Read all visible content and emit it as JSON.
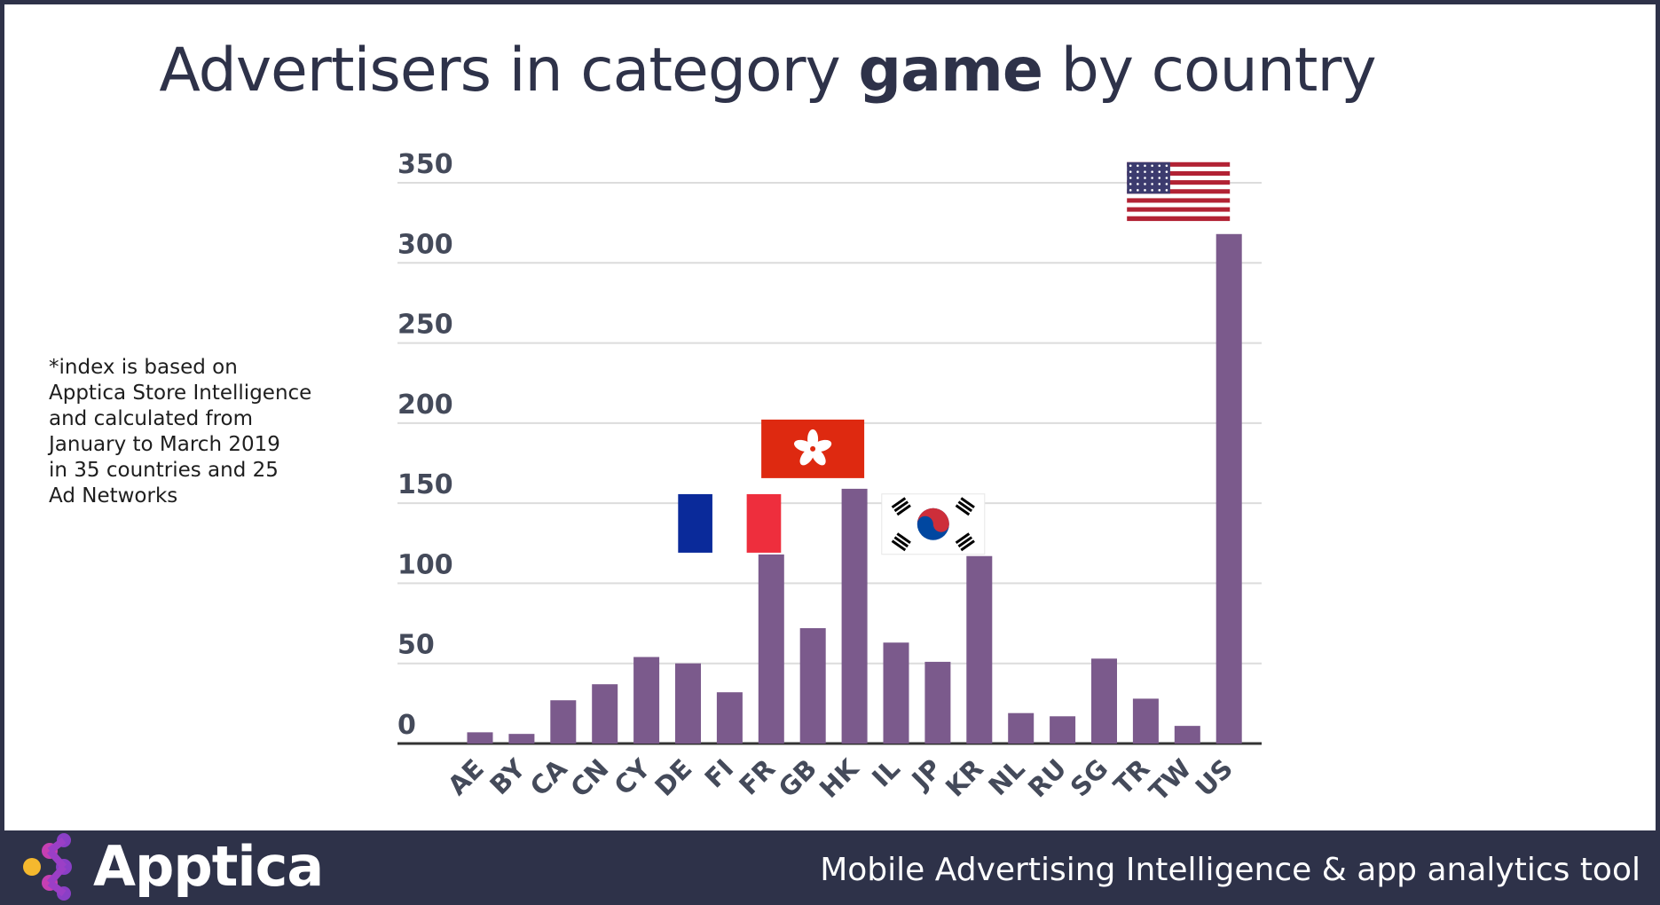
{
  "title": {
    "prefix": "Advertisers in category ",
    "bold": "game",
    "suffix": " by country"
  },
  "note": "*index is based on\nApptica Store Intelligence\nand calculated from\nJanuary to March 2019\nin 35 countries and 25\nAd Networks",
  "footer": {
    "brand": "Apptica",
    "tagline": "Mobile Advertising Intelligence & app analytics tool"
  },
  "colors": {
    "bar": "#7b5a8c",
    "text": "#2e3249",
    "footer_bg": "#2e3249",
    "grid": "#dcdcdc"
  },
  "chart_data": {
    "type": "bar",
    "categories": [
      "AE",
      "BY",
      "CA",
      "CN",
      "CY",
      "DE",
      "FI",
      "FR",
      "GB",
      "HK",
      "IL",
      "JP",
      "KR",
      "NL",
      "RU",
      "SG",
      "TR",
      "TW",
      "US"
    ],
    "values": [
      7,
      6,
      27,
      37,
      54,
      50,
      32,
      118,
      72,
      159,
      63,
      51,
      117,
      19,
      17,
      53,
      28,
      11,
      318
    ],
    "ylim": [
      0,
      350
    ],
    "yticks": [
      0,
      50,
      100,
      150,
      200,
      250,
      300,
      350
    ],
    "grid": true,
    "flags": [
      {
        "category": "FR",
        "icon": "france-flag-icon"
      },
      {
        "category": "HK",
        "icon": "hong-kong-flag-icon"
      },
      {
        "category": "KR",
        "icon": "south-korea-flag-icon"
      },
      {
        "category": "US",
        "icon": "usa-flag-icon"
      }
    ]
  }
}
